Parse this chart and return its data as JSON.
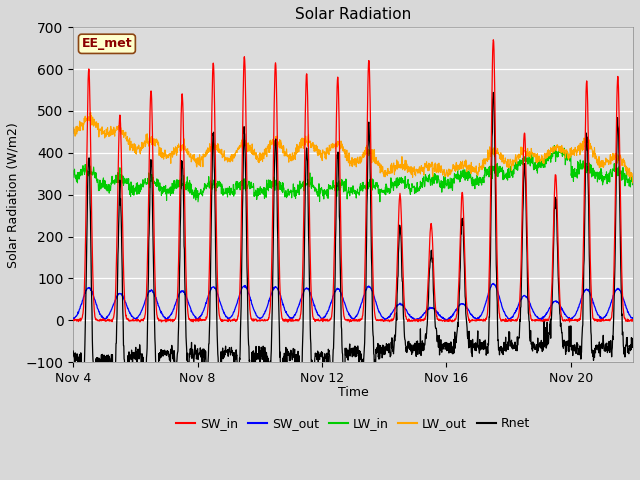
{
  "title": "Solar Radiation",
  "xlabel": "Time",
  "ylabel": "Solar Radiation (W/m2)",
  "ylim": [
    -100,
    700
  ],
  "yticks": [
    -100,
    0,
    100,
    200,
    300,
    400,
    500,
    600,
    700
  ],
  "n_days": 18,
  "points_per_day": 96,
  "colors": {
    "SW_in": "#ff0000",
    "SW_out": "#0000ff",
    "LW_in": "#00cc00",
    "LW_out": "#ffa500",
    "Rnet": "#000000"
  },
  "fig_bg": "#d8d8d8",
  "plot_bg": "#dcdcdc",
  "annotation_text": "EE_met",
  "annotation_color": "#8b0000",
  "annotation_bg": "#ffffcc",
  "annotation_border": "#8b4513",
  "xtick_positions": [
    0,
    4,
    8,
    12,
    16
  ],
  "xtick_labels": [
    "Nov 4",
    "Nov 8",
    "Nov 12",
    "Nov 16",
    "Nov 20"
  ],
  "sw_in_peaks": [
    600,
    490,
    550,
    540,
    615,
    630,
    615,
    590,
    580,
    620,
    300,
    230,
    305,
    670,
    450,
    350,
    570,
    580
  ],
  "lw_in_base": 350,
  "lw_out_base": 375,
  "night_rnet": -55
}
